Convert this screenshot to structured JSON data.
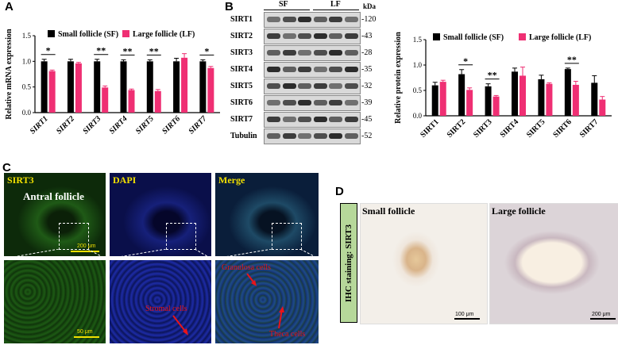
{
  "panels": {
    "a": "A",
    "b": "B",
    "c": "C",
    "d": "D"
  },
  "legend": {
    "sf": "Small follicle (SF)",
    "lf": "Large follicle (LF)"
  },
  "colors": {
    "sf": "#000000",
    "lf": "#ef2f73"
  },
  "chart_data": [
    {
      "type": "bar",
      "ylabel": "Relative mRNA expression",
      "ylim": [
        0,
        1.5
      ],
      "yticks": [
        "0.0",
        "0.5",
        "1.0",
        "1.5"
      ],
      "categories": [
        "SIRT1",
        "SIRT2",
        "SIRT3",
        "SIRT4",
        "SIRT5",
        "SIRT6",
        "SIRT7"
      ],
      "series": [
        {
          "name": "Small follicle (SF)",
          "values": [
            1.0,
            1.0,
            1.0,
            1.0,
            1.0,
            1.0,
            1.0
          ],
          "errors": [
            0.04,
            0.04,
            0.04,
            0.03,
            0.03,
            0.06,
            0.03
          ]
        },
        {
          "name": "Large follicle (LF)",
          "values": [
            0.81,
            0.96,
            0.49,
            0.44,
            0.42,
            1.07,
            0.87
          ],
          "errors": [
            0.02,
            0.02,
            0.03,
            0.02,
            0.03,
            0.08,
            0.03
          ]
        }
      ],
      "significance": [
        {
          "index": 0,
          "mark": "*"
        },
        {
          "index": 2,
          "mark": "**"
        },
        {
          "index": 3,
          "mark": "**"
        },
        {
          "index": 4,
          "mark": "**"
        },
        {
          "index": 6,
          "mark": "*"
        }
      ]
    },
    {
      "type": "bar",
      "ylabel": "Relative protein expression",
      "ylim": [
        0,
        1.5
      ],
      "yticks": [
        "0.0",
        "0.5",
        "1.0",
        "1.5"
      ],
      "categories": [
        "SIRT1",
        "SIRT2",
        "SIRT3",
        "SIRT4",
        "SIRT5",
        "SIRT6",
        "SIRT7"
      ],
      "series": [
        {
          "name": "Small follicle (SF)",
          "values": [
            0.6,
            0.82,
            0.58,
            0.87,
            0.72,
            0.92,
            0.65
          ],
          "errors": [
            0.06,
            0.09,
            0.05,
            0.07,
            0.08,
            0.02,
            0.14
          ]
        },
        {
          "name": "Large follicle (LF)",
          "values": [
            0.67,
            0.51,
            0.38,
            0.79,
            0.63,
            0.61,
            0.32
          ],
          "errors": [
            0.03,
            0.04,
            0.02,
            0.17,
            0.02,
            0.07,
            0.06
          ]
        }
      ],
      "significance": [
        {
          "index": 1,
          "mark": "*"
        },
        {
          "index": 2,
          "mark": "**"
        },
        {
          "index": 5,
          "mark": "**"
        }
      ]
    }
  ],
  "western": {
    "groups": [
      "SF",
      "LF"
    ],
    "unit": "kDa",
    "proteins": [
      "SIRT1",
      "SIRT2",
      "SIRT3",
      "SIRT4",
      "SIRT5",
      "SIRT6",
      "SIRT7",
      "Tubulin"
    ],
    "sizes": [
      "120",
      "43",
      "28",
      "35",
      "32",
      "39",
      "45",
      "52"
    ]
  },
  "if_panel": {
    "titles": [
      "SIRT3",
      "DAPI",
      "Merge"
    ],
    "region": "Antral follicle",
    "scale_top": "200 μm",
    "scale_bottom": "50 μm",
    "cells": [
      "Granulosa cells",
      "Stromal cells",
      "Theca cells"
    ]
  },
  "ihc_panel": {
    "side_label": "IHC staining: SIRT3",
    "titles": [
      "Small follicle",
      "Large follicle"
    ],
    "scales": [
      "100 μm",
      "200 μm"
    ]
  }
}
